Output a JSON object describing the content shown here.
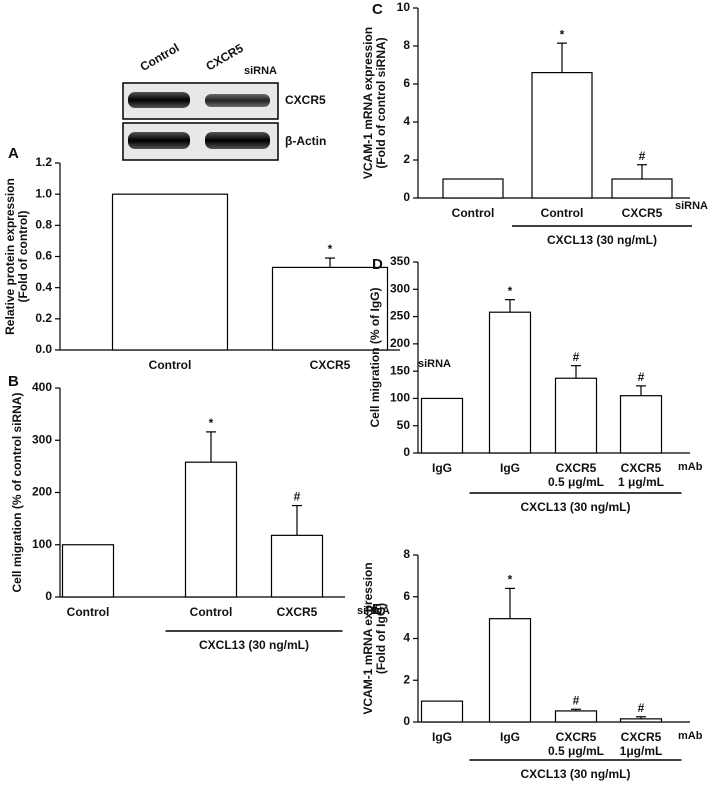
{
  "chart_data": [
    {
      "type": "bar",
      "panel": "A",
      "blot": {
        "lanes": [
          "Control",
          "CXCR5"
        ],
        "lane_suffix": "siRNA",
        "rows": [
          "CXCR5",
          "β-Actin"
        ]
      },
      "ylabel": [
        "Relative protein expression",
        "(Fold of control)"
      ],
      "categories": [
        "Control",
        "CXCR5"
      ],
      "x_suffix": "siRNA",
      "values": [
        1.0,
        0.53
      ],
      "errors": [
        null,
        0.06
      ],
      "value_annotations": [
        null,
        "*"
      ],
      "ylim": [
        0,
        1.2
      ],
      "yticks": [
        {
          "value": 0,
          "label": "0.0"
        },
        {
          "value": 0.2,
          "label": "0.2"
        },
        {
          "value": 0.4,
          "label": "0.4"
        },
        {
          "value": 0.6,
          "label": "0.6"
        },
        {
          "value": 0.8,
          "label": "0.8"
        },
        {
          "value": 1,
          "label": "1.0"
        },
        {
          "value": 1.2,
          "label": "1.2"
        }
      ],
      "color": "#ffffff"
    },
    {
      "type": "bar",
      "panel": "B",
      "ylabel": [
        "Cell migration (% of control siRNA)"
      ],
      "categories": [
        "Control",
        "Control",
        "CXCR5"
      ],
      "x_suffix": "siRNA",
      "group_label": "CXCL13 (30 ng/mL)",
      "group_categories": [
        1,
        2
      ],
      "values": [
        100,
        258,
        118
      ],
      "errors": [
        null,
        58,
        57
      ],
      "value_annotations": [
        null,
        "*",
        "#"
      ],
      "ylim": [
        0,
        400
      ],
      "yticks": [
        0,
        100,
        200,
        300,
        400
      ],
      "color": "#ffffff"
    },
    {
      "type": "bar",
      "panel": "C",
      "ylabel": [
        "VCAM-1 mRNA expression",
        "(Fold of control siRNA)"
      ],
      "categories": [
        "Control",
        "Control",
        "CXCR5"
      ],
      "x_suffix": "siRNA",
      "group_label": "CXCL13 (30 ng/mL)",
      "group_categories": [
        1,
        2
      ],
      "values": [
        1.0,
        6.6,
        1.0
      ],
      "errors": [
        null,
        1.55,
        0.75
      ],
      "value_annotations": [
        null,
        "*",
        "#"
      ],
      "ylim": [
        0,
        10
      ],
      "yticks": [
        0,
        2,
        4,
        6,
        8,
        10
      ],
      "color": "#ffffff"
    },
    {
      "type": "bar",
      "panel": "D",
      "ylabel": [
        "Cell migration (% of IgG)"
      ],
      "categories": [
        [
          "IgG"
        ],
        [
          "IgG"
        ],
        [
          "CXCR5",
          "0.5 μg/mL"
        ],
        [
          "CXCR5",
          "1 μg/mL"
        ]
      ],
      "x_suffix": "mAb",
      "group_label": "CXCL13 (30 ng/mL)",
      "group_categories": [
        1,
        3
      ],
      "values": [
        100,
        258,
        137,
        105
      ],
      "errors": [
        null,
        23,
        23,
        18
      ],
      "value_annotations": [
        null,
        "*",
        "#",
        "#"
      ],
      "ylim": [
        0,
        350
      ],
      "yticks": [
        0,
        50,
        100,
        150,
        200,
        250,
        300,
        350
      ],
      "color": "#ffffff"
    },
    {
      "type": "bar",
      "panel": "E",
      "ylabel": [
        "VCAM-1 mRNA expression",
        "(Fold of IgG)"
      ],
      "categories": [
        [
          "IgG"
        ],
        [
          "IgG"
        ],
        [
          "CXCR5",
          "0.5 μg/mL"
        ],
        [
          "CXCR5",
          "1μg/mL"
        ]
      ],
      "x_suffix": "mAb",
      "group_label": "CXCL13 (30 ng/mL)",
      "group_categories": [
        1,
        3
      ],
      "values": [
        1.0,
        4.95,
        0.53,
        0.15
      ],
      "errors": [
        null,
        1.45,
        0.08,
        0.1
      ],
      "value_annotations": [
        null,
        "*",
        "#",
        "#"
      ],
      "ylim": [
        0,
        8
      ],
      "yticks": [
        0,
        2,
        4,
        6,
        8
      ],
      "color": "#ffffff"
    }
  ]
}
